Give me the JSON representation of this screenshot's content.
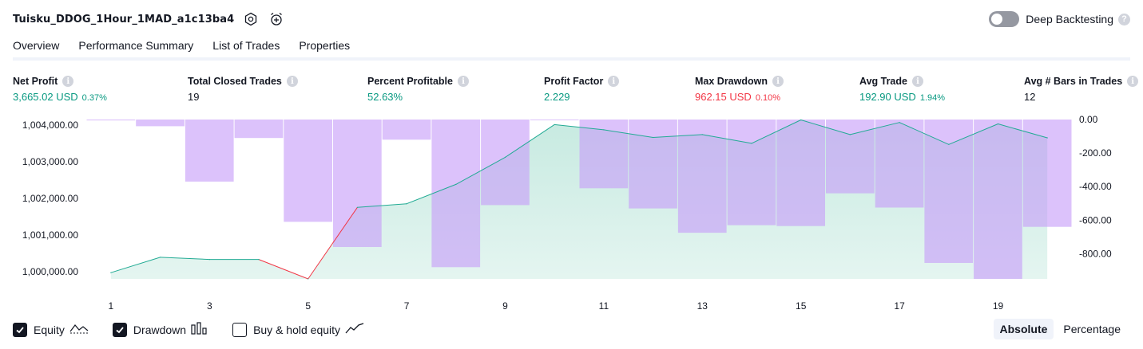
{
  "header": {
    "strategy_name": "Tuisku_DDOG_1Hour_1MAD_a1c13ba4",
    "settings_icon": "gear-icon",
    "alert_icon": "alarm-clock-plus-icon",
    "deep_backtesting_label": "Deep Backtesting",
    "deep_backtesting_enabled": false,
    "help_glyph": "?"
  },
  "tabs": [
    {
      "label": "Overview",
      "active": true
    },
    {
      "label": "Performance Summary",
      "active": false
    },
    {
      "label": "List of Trades",
      "active": false
    },
    {
      "label": "Properties",
      "active": false
    }
  ],
  "stats": {
    "net_profit": {
      "label": "Net Profit",
      "value": "3,665.02 USD",
      "pct": "0.37%"
    },
    "total_closed_trades": {
      "label": "Total Closed Trades",
      "value": "19"
    },
    "percent_profitable": {
      "label": "Percent Profitable",
      "value": "52.63%"
    },
    "profit_factor": {
      "label": "Profit Factor",
      "value": "2.229"
    },
    "max_drawdown": {
      "label": "Max Drawdown",
      "value": "962.15 USD",
      "pct": "0.10%"
    },
    "avg_trade": {
      "label": "Avg Trade",
      "value": "192.90 USD",
      "pct": "1.94%"
    },
    "avg_bars": {
      "label": "Avg # Bars in Trades",
      "value": "12"
    }
  },
  "colors": {
    "positive": "#089981",
    "negative": "#f23645",
    "equity_line": "#22ab94",
    "drawdown_bar": "#c79cf9",
    "equity_fill": "#c4e9df"
  },
  "chart_data": {
    "type": "bar+area",
    "x": [
      1,
      2,
      3,
      4,
      5,
      6,
      7,
      8,
      9,
      10,
      11,
      12,
      13,
      14,
      15,
      16,
      17,
      18,
      19,
      20
    ],
    "x_tick_labels": [
      "1",
      "3",
      "5",
      "7",
      "9",
      "11",
      "13",
      "15",
      "17",
      "19"
    ],
    "left_axis": {
      "ticks": [
        "1,004,000.00",
        "1,003,000.00",
        "1,002,000.00",
        "1,001,000.00",
        "1,000,000.00"
      ],
      "tick_values": [
        1004000,
        1003000,
        1002000,
        1001000,
        1000000
      ],
      "range": [
        999800,
        1004150
      ]
    },
    "right_axis": {
      "ticks": [
        "0.00",
        "-200.00",
        "-400.00",
        "-600.00",
        "-800.00"
      ],
      "tick_values": [
        0,
        -200,
        -400,
        -600,
        -800
      ],
      "range": [
        -950,
        0
      ]
    },
    "series": [
      {
        "name": "Equity",
        "axis": "left",
        "values": [
          999970,
          1000390,
          1000330,
          1000330,
          999800,
          1001750,
          1001850,
          1002380,
          1003120,
          1004010,
          1003870,
          1003660,
          1003740,
          1003500,
          1004140,
          1003740,
          1004070,
          1003470,
          1004030,
          1003650
        ]
      },
      {
        "name": "Drawdown",
        "axis": "right",
        "values": [
          -5,
          -40,
          -370,
          -110,
          -610,
          -760,
          -120,
          -880,
          -510,
          0,
          -410,
          -530,
          -675,
          -630,
          -635,
          -440,
          -525,
          -855,
          -950,
          -640
        ]
      }
    ]
  },
  "legend": [
    {
      "label": "Equity",
      "checked": true,
      "icon": "equity-line-icon"
    },
    {
      "label": "Drawdown",
      "checked": true,
      "icon": "drawdown-bars-icon"
    },
    {
      "label": "Buy & hold equity",
      "checked": false,
      "icon": "buy-hold-line-icon"
    }
  ],
  "modes": [
    {
      "label": "Absolute",
      "active": true
    },
    {
      "label": "Percentage",
      "active": false
    }
  ]
}
